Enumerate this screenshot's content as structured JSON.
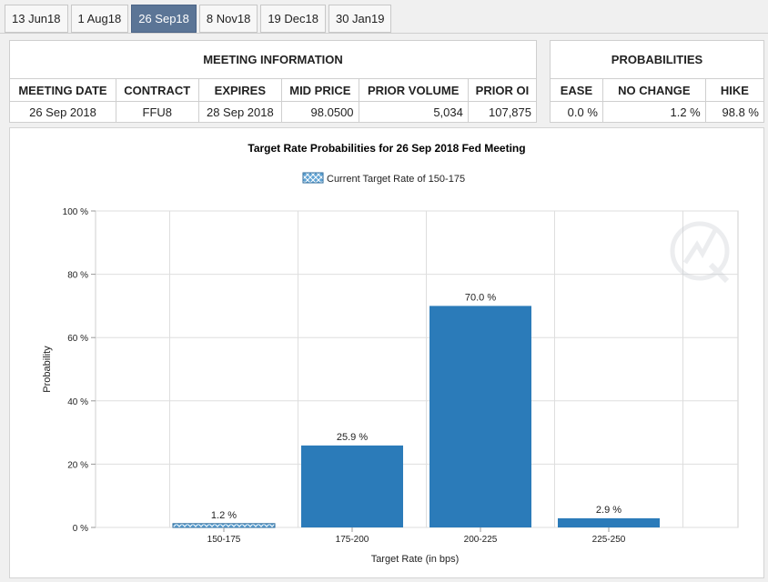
{
  "tabs": [
    {
      "label": "13 Jun18",
      "active": false
    },
    {
      "label": "1 Aug18",
      "active": false
    },
    {
      "label": "26 Sep18",
      "active": true
    },
    {
      "label": "8 Nov18",
      "active": false
    },
    {
      "label": "19 Dec18",
      "active": false
    },
    {
      "label": "30 Jan19",
      "active": false
    }
  ],
  "meeting_info": {
    "title": "MEETING INFORMATION",
    "columns": [
      "MEETING DATE",
      "CONTRACT",
      "EXPIRES",
      "MID PRICE",
      "PRIOR VOLUME",
      "PRIOR OI"
    ],
    "values": [
      "26 Sep 2018",
      "FFU8",
      "28 Sep 2018",
      "98.0500",
      "5,034",
      "107,875"
    ]
  },
  "probabilities": {
    "title": "PROBABILITIES",
    "columns": [
      "EASE",
      "NO CHANGE",
      "HIKE"
    ],
    "values": [
      "0.0 %",
      "1.2 %",
      "98.8 %"
    ]
  },
  "colors": {
    "bar": "#2b7bb9",
    "current_bar": "#5fa3d4",
    "active_tab": "#5b7596"
  },
  "chart_data": {
    "type": "bar",
    "title": "Target Rate Probabilities for 26 Sep 2018 Fed Meeting",
    "legend": "Current Target Rate of 150-175",
    "legend_position": "top-center",
    "xlabel": "Target Rate (in bps)",
    "ylabel": "Probability",
    "categories": [
      "150-175",
      "175-200",
      "200-225",
      "225-250"
    ],
    "values": [
      1.2,
      25.9,
      70.0,
      2.9
    ],
    "value_labels": [
      "1.2 %",
      "25.9 %",
      "70.0 %",
      "2.9 %"
    ],
    "current_category": "150-175",
    "ylim": [
      0,
      100
    ],
    "yticks": [
      0,
      20,
      40,
      60,
      80,
      100
    ],
    "ytick_labels": [
      "0 %",
      "20 %",
      "40 %",
      "60 %",
      "80 %",
      "100 %"
    ],
    "grid": true
  }
}
